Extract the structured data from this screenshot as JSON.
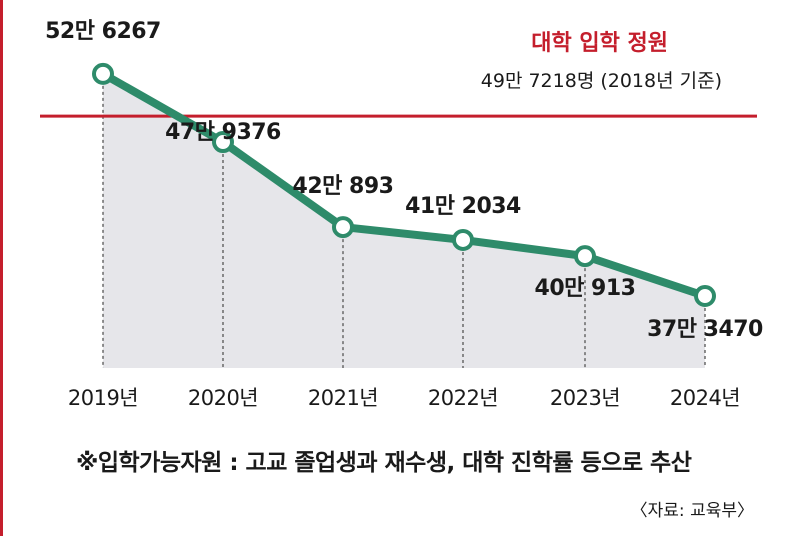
{
  "chart_data": {
    "type": "line",
    "categories": [
      "2019년",
      "2020년",
      "2021년",
      "2022년",
      "2023년",
      "2024년"
    ],
    "values": [
      526267,
      479376,
      420893,
      412034,
      400913,
      373470
    ],
    "value_labels": [
      "52만 6267",
      "47만 9376",
      "42만 893",
      "41만 2034",
      "40만 913",
      "37만 3470"
    ],
    "reference_line": {
      "value": 497218,
      "title": "대학 입학 정원",
      "label": "49만 7218명 (2018년 기준)"
    },
    "ylim": [
      300000,
      545000
    ],
    "line_color": "#2e8b6a",
    "reference_color": "#c41e2c",
    "fill_color": "#e6e6ea"
  },
  "footnote": "※입학가능자원 : 고교 졸업생과 재수생, 대학 진학률 등으로 추산",
  "source": "〈자료: 교육부〉"
}
